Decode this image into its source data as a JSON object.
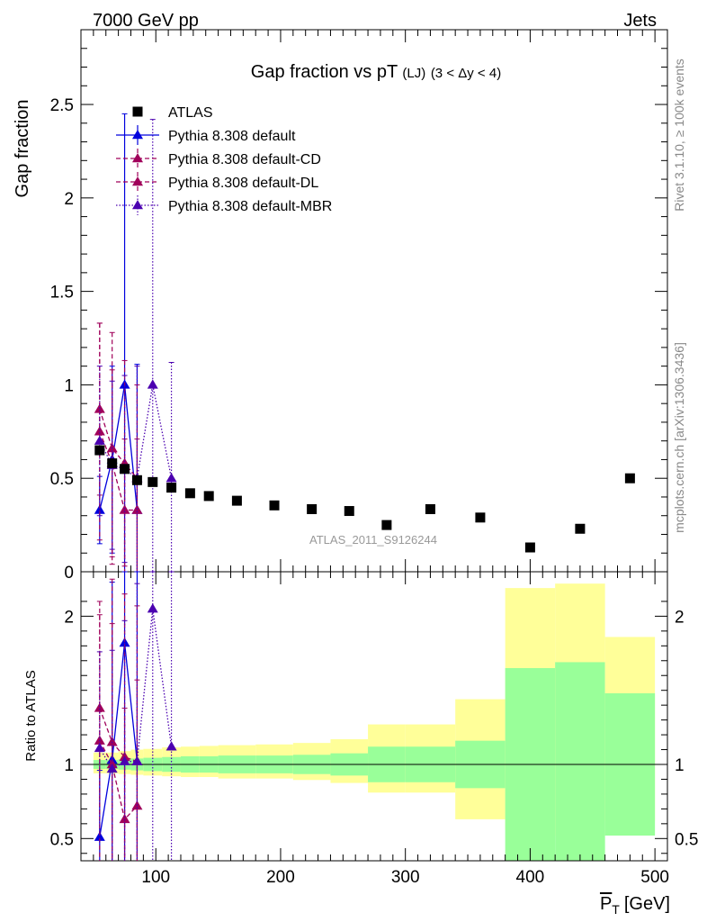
{
  "header": {
    "left": "7000 GeV pp",
    "right": "Jets",
    "title_main": "Gap fraction vs pT",
    "title_small": "(LJ)",
    "title_range": "(3 < Δy < 4)",
    "analysis_tag": "ATLAS_2011_S9126244",
    "side_rivet": "Rivet 3.1.10, ≥ 100k events",
    "side_mcplots": "mcplots.cern.ch [arXiv:1306.3436]"
  },
  "colors": {
    "atlas": "#000000",
    "default": "#0000dd",
    "default_cd": "#a0005a",
    "default_dl": "#a0005a",
    "default_mbr": "#4b00b0",
    "band_outer": "#ffff99",
    "band_inner": "#99ff99"
  },
  "chart_data": [
    {
      "type": "scatter",
      "panel": "main",
      "ylabel": "Gap fraction",
      "xlim": [
        40,
        510
      ],
      "ylim": [
        0,
        2.9
      ],
      "yticks": [
        0,
        0.5,
        1,
        1.5,
        2,
        2.5
      ],
      "ytick_labels": [
        "0",
        "0.5",
        "1",
        "1.5",
        "2",
        "2.5"
      ],
      "legend_position": "top-left",
      "series": [
        {
          "name": "ATLAS",
          "style": "square",
          "x": [
            55,
            65,
            75,
            85,
            97.5,
            112.5,
            127.5,
            142.5,
            165,
            195,
            225,
            255,
            285,
            320,
            360,
            400,
            440,
            480
          ],
          "y": [
            0.65,
            0.58,
            0.55,
            0.49,
            0.48,
            0.45,
            0.42,
            0.405,
            0.38,
            0.355,
            0.335,
            0.325,
            0.25,
            0.335,
            0.29,
            0.13,
            0.23,
            0.5
          ]
        },
        {
          "name": "Pythia 8.308 default",
          "style": "solid",
          "x": [
            55,
            65,
            75,
            85
          ],
          "y": [
            0.33,
            0.6,
            1.0,
            0.33
          ],
          "err": [
            0.18,
            0.5,
            1.45,
            0.78
          ]
        },
        {
          "name": "Pythia 8.308 default-CD",
          "style": "dashed",
          "x": [
            55,
            65,
            75,
            85
          ],
          "y": [
            0.75,
            0.58,
            0.33,
            0.33
          ],
          "err": [
            0.58,
            0.5,
            0.38,
            0.38
          ]
        },
        {
          "name": "Pythia 8.308 default-DL",
          "style": "dashed",
          "x": [
            55,
            65,
            75,
            85
          ],
          "y": [
            0.87,
            0.66,
            0.58,
            0.5
          ],
          "err": [
            0.46,
            0.62,
            0.55,
            0.5
          ]
        },
        {
          "name": "Pythia 8.308 default-MBR",
          "style": "dotted",
          "x": [
            55,
            65,
            75,
            85,
            97.5,
            112.5
          ],
          "y": [
            0.7,
            0.57,
            0.55,
            0.5,
            1.0,
            0.5
          ],
          "err": [
            0.4,
            0.45,
            0.5,
            0.6,
            1.42,
            0.62
          ]
        }
      ]
    },
    {
      "type": "line",
      "panel": "ratio",
      "ylabel": "Ratio to ATLAS",
      "xlabel": "P_T [GeV]",
      "xlabel_main": "P",
      "xlabel_sub": "T",
      "xlabel_unit": "[GeV]",
      "xlim": [
        40,
        510
      ],
      "ylim": [
        0.35,
        2.3
      ],
      "yticks": [
        0.5,
        1,
        2
      ],
      "ytick_labels": [
        "0.5",
        "1",
        "2"
      ],
      "xticks": [
        100,
        200,
        300,
        400,
        500
      ],
      "xtick_labels": [
        "100",
        "200",
        "300",
        "400",
        "500"
      ],
      "bands": {
        "edges": [
          50,
          60,
          70,
          80,
          90,
          105,
          120,
          135,
          150,
          180,
          210,
          240,
          270,
          300,
          340,
          380,
          420,
          460,
          500
        ],
        "inner_up": [
          1.03,
          1.03,
          1.035,
          1.04,
          1.045,
          1.05,
          1.055,
          1.055,
          1.06,
          1.06,
          1.065,
          1.075,
          1.12,
          1.12,
          1.16,
          1.65,
          1.69,
          1.48
        ],
        "inner_dn": [
          0.97,
          0.97,
          0.965,
          0.96,
          0.955,
          0.95,
          0.945,
          0.945,
          0.94,
          0.94,
          0.935,
          0.925,
          0.88,
          0.88,
          0.84,
          0.35,
          0.35,
          0.52
        ],
        "outer_up": [
          1.08,
          1.08,
          1.09,
          1.1,
          1.105,
          1.115,
          1.12,
          1.125,
          1.13,
          1.135,
          1.145,
          1.17,
          1.27,
          1.27,
          1.44,
          2.19,
          2.22,
          1.86
        ],
        "outer_dn": [
          0.94,
          0.94,
          0.935,
          0.93,
          0.925,
          0.92,
          0.915,
          0.915,
          0.905,
          0.905,
          0.895,
          0.875,
          0.81,
          0.81,
          0.63,
          0.56,
          0.52,
          0.62
        ]
      },
      "series": [
        {
          "name": "Pythia 8.308 default",
          "x": [
            55,
            65,
            75,
            85
          ],
          "y": [
            0.51,
            1.03,
            1.82,
            1.02
          ],
          "err": [
            0.45,
            1.2,
            2.0,
            1.3
          ]
        },
        {
          "name": "Pythia 8.308 default-CD",
          "x": [
            55,
            65,
            75,
            85
          ],
          "y": [
            1.16,
            1.0,
            0.63,
            0.72
          ],
          "err": [
            0.85,
            0.95,
            0.75,
            0.85
          ]
        },
        {
          "name": "Pythia 8.308 default-DL",
          "x": [
            55,
            65,
            75,
            85
          ],
          "y": [
            1.38,
            1.15,
            1.05,
            1.02
          ],
          "err": [
            0.72,
            1.1,
            1.1,
            1.05
          ]
        },
        {
          "name": "Pythia 8.308 default-MBR",
          "x": [
            55,
            65,
            75,
            85,
            97.5,
            112.5
          ],
          "y": [
            1.11,
            0.97,
            1.02,
            1.02,
            2.05,
            1.12
          ],
          "err": [
            0.65,
            0.8,
            0.95,
            1.2,
            2.0,
            1.35
          ]
        }
      ]
    }
  ]
}
